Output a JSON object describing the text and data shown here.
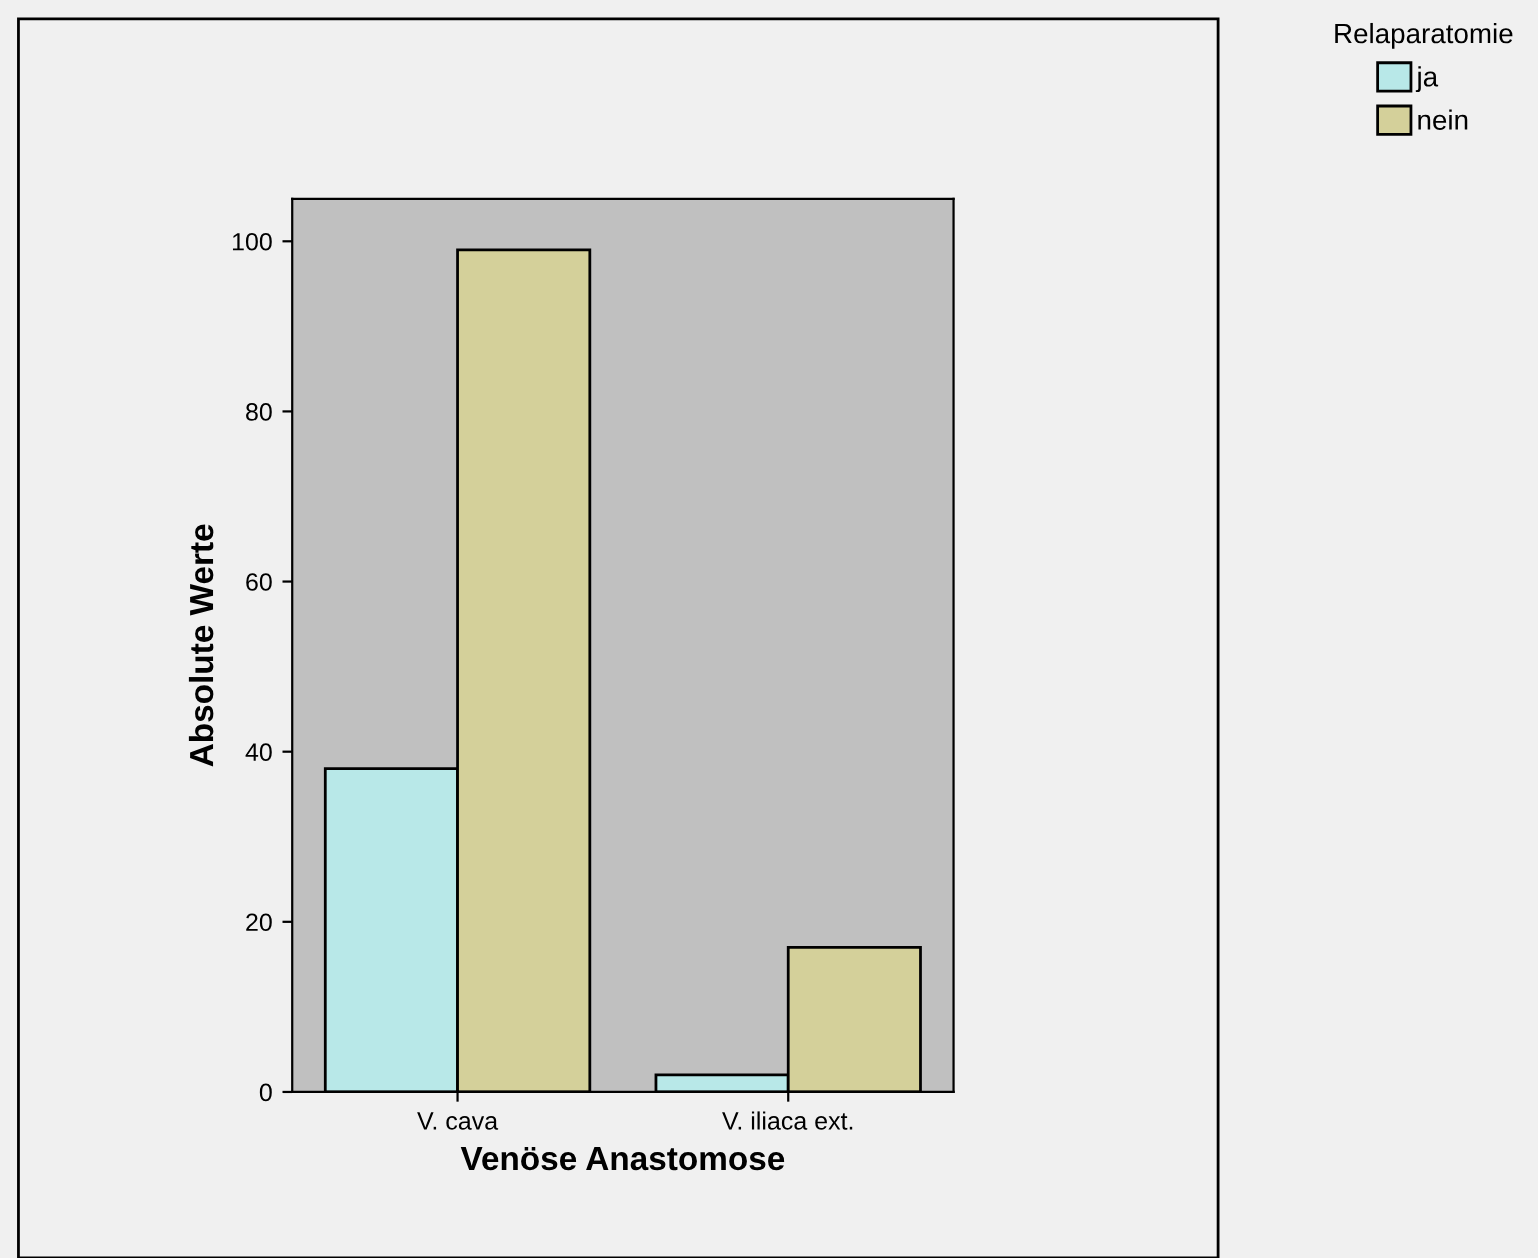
{
  "chart_data": {
    "type": "bar",
    "xlabel": "Venöse Anastomose",
    "ylabel": "Absolute Werte",
    "legend_title": "Relaparatomie",
    "categories": [
      "V. cava",
      "V. iliaca ext."
    ],
    "series": [
      {
        "name": "ja",
        "color": "#b8e8e8",
        "values": [
          38,
          2
        ]
      },
      {
        "name": "nein",
        "color": "#d4d09a",
        "values": [
          99,
          17
        ]
      }
    ],
    "ylim": [
      0,
      105
    ],
    "yticks": [
      0,
      20,
      40,
      60,
      80,
      100
    ],
    "grid": false,
    "legend": "top right"
  }
}
